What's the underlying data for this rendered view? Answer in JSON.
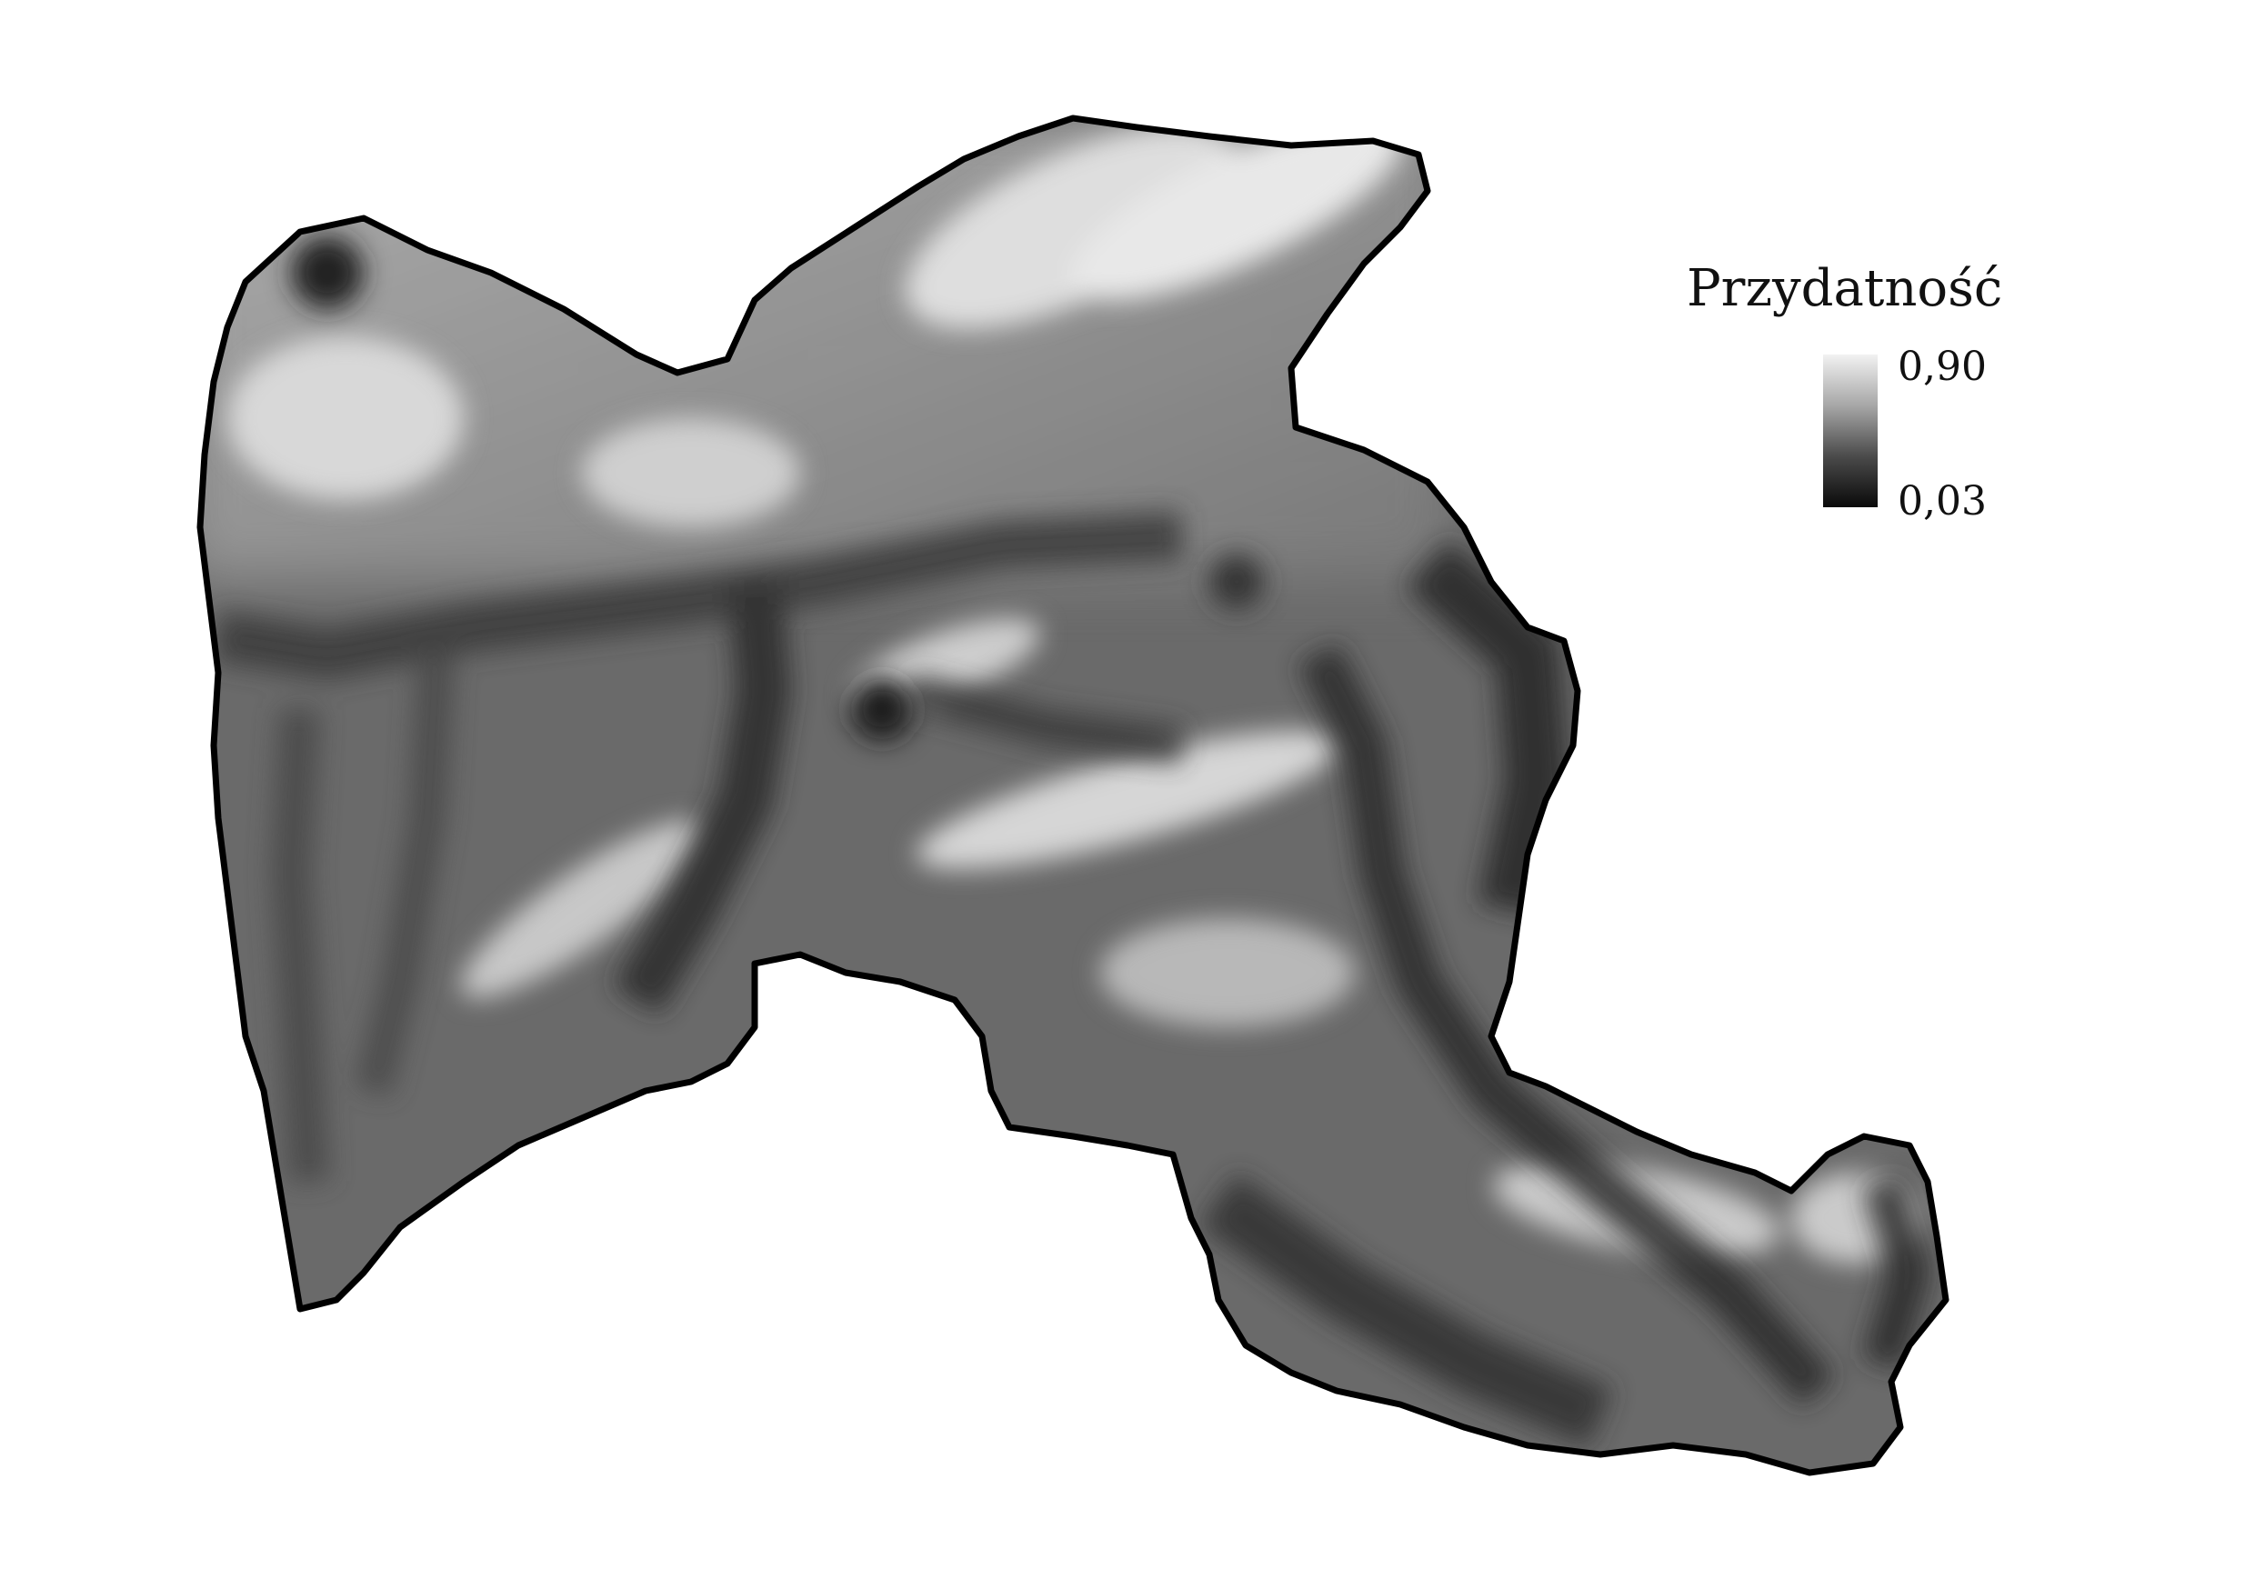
{
  "legend": {
    "title": "Przydatność",
    "max_label": "0,90",
    "min_label": "0,03",
    "ramp_colors": [
      "#f2f2f2",
      "#a8a8a8",
      "#4a4a4a",
      "#0a0a0a"
    ]
  },
  "map": {
    "outline_color": "#000000",
    "fill_color": "#6a6a6a"
  }
}
